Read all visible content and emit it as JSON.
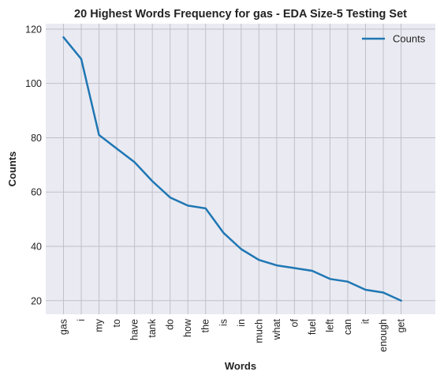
{
  "chart_data": {
    "type": "line",
    "title": "20 Highest Words Frequency for gas - EDA Size-5 Testing Set",
    "xlabel": "Words",
    "ylabel": "Counts",
    "categories": [
      "gas",
      "i",
      "my",
      "to",
      "have",
      "tank",
      "do",
      "how",
      "the",
      "is",
      "in",
      "much",
      "what",
      "of",
      "fuel",
      "left",
      "can",
      "it",
      "enough",
      "get"
    ],
    "series": [
      {
        "name": "Counts",
        "color": "#1f77b4",
        "values": [
          117,
          109,
          81,
          76,
          71,
          64,
          58,
          55,
          54,
          45,
          39,
          35,
          33,
          32,
          31,
          28,
          27,
          24,
          23,
          20
        ]
      }
    ],
    "yticks": [
      20,
      40,
      60,
      80,
      100,
      120
    ],
    "ylim": [
      15,
      122
    ],
    "grid": true,
    "legend_position": "top-right",
    "colors": {
      "plot_background": "#eaeaf2",
      "grid": "#c0c0c8",
      "series": "#1f77b4"
    }
  }
}
